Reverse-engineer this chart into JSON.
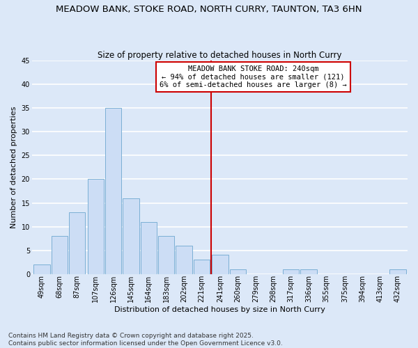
{
  "title": "MEADOW BANK, STOKE ROAD, NORTH CURRY, TAUNTON, TA3 6HN",
  "subtitle": "Size of property relative to detached houses in North Curry",
  "xlabel": "Distribution of detached houses by size in North Curry",
  "ylabel": "Number of detached properties",
  "bar_color": "#ccddf5",
  "bar_edge_color": "#7bafd4",
  "background_color": "#dce8f8",
  "grid_color": "#ffffff",
  "bin_labels": [
    "49sqm",
    "68sqm",
    "87sqm",
    "107sqm",
    "126sqm",
    "145sqm",
    "164sqm",
    "183sqm",
    "202sqm",
    "221sqm",
    "241sqm",
    "260sqm",
    "279sqm",
    "298sqm",
    "317sqm",
    "336sqm",
    "355sqm",
    "375sqm",
    "394sqm",
    "413sqm",
    "432sqm"
  ],
  "bin_edges": [
    49,
    68,
    87,
    107,
    126,
    145,
    164,
    183,
    202,
    221,
    241,
    260,
    279,
    298,
    317,
    336,
    355,
    375,
    394,
    413,
    432
  ],
  "counts": [
    2,
    8,
    13,
    20,
    35,
    16,
    11,
    8,
    6,
    3,
    4,
    1,
    0,
    0,
    1,
    1,
    0,
    0,
    0,
    0,
    1
  ],
  "ylim": [
    0,
    45
  ],
  "yticks": [
    0,
    5,
    10,
    15,
    20,
    25,
    30,
    35,
    40,
    45
  ],
  "vline_x": 241,
  "vline_color": "#cc0000",
  "annotation_text": "MEADOW BANK STOKE ROAD: 240sqm\n← 94% of detached houses are smaller (121)\n6% of semi-detached houses are larger (8) →",
  "annotation_box_color": "#ffffff",
  "annotation_box_edge_color": "#cc0000",
  "footer_line1": "Contains HM Land Registry data © Crown copyright and database right 2025.",
  "footer_line2": "Contains public sector information licensed under the Open Government Licence v3.0.",
  "title_fontsize": 9.5,
  "subtitle_fontsize": 8.5,
  "label_fontsize": 8,
  "tick_fontsize": 7,
  "annotation_fontsize": 7.5,
  "footer_fontsize": 6.5
}
